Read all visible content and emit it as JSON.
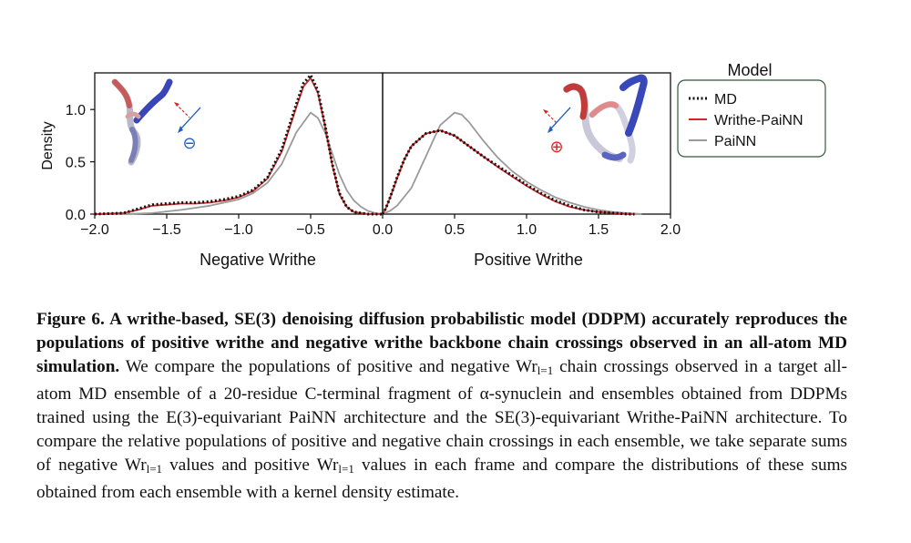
{
  "chart_data": {
    "type": "line",
    "panels": [
      {
        "xlabel": "Negative Writhe",
        "xlim": [
          -2.0,
          0.0
        ],
        "xticks": [
          "−2.0",
          "−1.5",
          "−1.0",
          "−0.5",
          "0.0"
        ],
        "ylabel": "Density",
        "ylim": [
          0,
          1.35
        ],
        "yticks": [
          "0.0",
          "0.5",
          "1.0"
        ],
        "inset_sign": "⊖",
        "series": [
          {
            "name": "MD",
            "color": "#111111",
            "style": "dotted",
            "x": [
              -2.0,
              -1.8,
              -1.7,
              -1.6,
              -1.5,
              -1.4,
              -1.3,
              -1.2,
              -1.1,
              -1.0,
              -0.9,
              -0.8,
              -0.7,
              -0.6,
              -0.55,
              -0.5,
              -0.45,
              -0.4,
              -0.35,
              -0.3,
              -0.25,
              -0.2,
              -0.1,
              0.0
            ],
            "y": [
              0.0,
              0.01,
              0.05,
              0.09,
              0.1,
              0.11,
              0.11,
              0.12,
              0.14,
              0.17,
              0.23,
              0.35,
              0.62,
              1.05,
              1.25,
              1.33,
              1.18,
              0.85,
              0.48,
              0.2,
              0.07,
              0.02,
              0.0,
              0.0
            ]
          },
          {
            "name": "Writhe-PaiNN",
            "color": "#d62728",
            "style": "solid",
            "x": [
              -2.0,
              -1.8,
              -1.7,
              -1.6,
              -1.5,
              -1.4,
              -1.3,
              -1.2,
              -1.1,
              -1.0,
              -0.9,
              -0.8,
              -0.7,
              -0.6,
              -0.55,
              -0.5,
              -0.45,
              -0.4,
              -0.35,
              -0.3,
              -0.25,
              -0.2,
              -0.1,
              0.0
            ],
            "y": [
              0.0,
              0.01,
              0.04,
              0.08,
              0.09,
              0.1,
              0.1,
              0.11,
              0.13,
              0.16,
              0.22,
              0.34,
              0.6,
              1.02,
              1.22,
              1.3,
              1.16,
              0.84,
              0.47,
              0.19,
              0.07,
              0.02,
              0.0,
              0.0
            ]
          },
          {
            "name": "PaiNN",
            "color": "#9a9a9a",
            "style": "solid",
            "x": [
              -2.0,
              -1.8,
              -1.6,
              -1.4,
              -1.2,
              -1.0,
              -0.9,
              -0.8,
              -0.7,
              -0.6,
              -0.5,
              -0.45,
              -0.4,
              -0.35,
              -0.3,
              -0.25,
              -0.2,
              -0.15,
              -0.1,
              -0.05,
              0.0
            ],
            "y": [
              0.0,
              0.0,
              0.01,
              0.04,
              0.08,
              0.14,
              0.2,
              0.3,
              0.48,
              0.78,
              0.97,
              0.92,
              0.78,
              0.58,
              0.38,
              0.23,
              0.13,
              0.07,
              0.03,
              0.01,
              0.0
            ]
          }
        ]
      },
      {
        "xlabel": "Positive Writhe",
        "xlim": [
          0.0,
          2.0
        ],
        "xticks": [
          "0.0",
          "0.5",
          "1.0",
          "1.5",
          "2.0"
        ],
        "ylim": [
          0,
          1.35
        ],
        "inset_sign": "⊕",
        "series": [
          {
            "name": "MD",
            "color": "#111111",
            "style": "dotted",
            "x": [
              0.0,
              0.02,
              0.05,
              0.1,
              0.15,
              0.2,
              0.3,
              0.4,
              0.5,
              0.6,
              0.7,
              0.8,
              0.9,
              1.0,
              1.1,
              1.2,
              1.3,
              1.4,
              1.5,
              1.6,
              1.7,
              1.75
            ],
            "y": [
              0.0,
              0.05,
              0.15,
              0.35,
              0.52,
              0.65,
              0.77,
              0.8,
              0.75,
              0.65,
              0.55,
              0.46,
              0.37,
              0.28,
              0.2,
              0.13,
              0.08,
              0.04,
              0.02,
              0.01,
              0.0,
              0.0
            ]
          },
          {
            "name": "Writhe-PaiNN",
            "color": "#d62728",
            "style": "solid",
            "x": [
              0.0,
              0.02,
              0.05,
              0.1,
              0.15,
              0.2,
              0.3,
              0.4,
              0.5,
              0.6,
              0.7,
              0.8,
              0.9,
              1.0,
              1.1,
              1.2,
              1.3,
              1.4,
              1.5,
              1.6,
              1.7,
              1.75
            ],
            "y": [
              0.0,
              0.05,
              0.15,
              0.34,
              0.52,
              0.65,
              0.77,
              0.8,
              0.75,
              0.65,
              0.55,
              0.45,
              0.36,
              0.27,
              0.19,
              0.12,
              0.07,
              0.04,
              0.02,
              0.01,
              0.0,
              0.0
            ]
          },
          {
            "name": "PaiNN",
            "color": "#9a9a9a",
            "style": "solid",
            "x": [
              0.0,
              0.05,
              0.1,
              0.2,
              0.3,
              0.4,
              0.5,
              0.55,
              0.6,
              0.7,
              0.8,
              0.9,
              1.0,
              1.1,
              1.2,
              1.3,
              1.4,
              1.5,
              1.6,
              1.7,
              1.8
            ],
            "y": [
              0.0,
              0.03,
              0.08,
              0.25,
              0.55,
              0.85,
              0.97,
              0.95,
              0.88,
              0.7,
              0.54,
              0.41,
              0.31,
              0.23,
              0.16,
              0.11,
              0.07,
              0.04,
              0.02,
              0.01,
              0.0
            ]
          }
        ]
      }
    ],
    "legend": {
      "title": "Model",
      "placement": "right",
      "entries": [
        "MD",
        "Writhe-PaiNN",
        "PaiNN"
      ]
    }
  },
  "caption": {
    "bold": "Figure 6. A writhe-based, SE(3) denoising diffusion probabilistic model (DDPM) accurately reproduces the populations of positive writhe and negative writhe backbone chain crossings observed in an all-atom MD simulation.",
    "t1": " We compare the populations of positive and negative ",
    "wr": "Wr",
    "sub": "l=1",
    "t2": " chain crossings observed in a target all-atom MD ensemble of a 20-residue C-terminal fragment of α-synuclein and ensembles obtained from DDPMs trained using the E(3)-equivariant PaiNN architecture and the SE(3)-equivariant Writhe-PaiNN architecture. To compare the relative populations of positive and negative chain crossings in each ensemble, we take separate sums of negative ",
    "t3": " values and positive ",
    "t4": " values in each frame and compare the distributions of these sums obtained from each ensemble with a kernel density estimate."
  }
}
